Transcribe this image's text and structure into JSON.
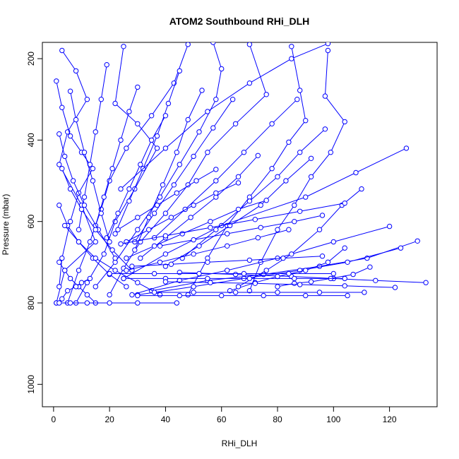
{
  "chart_data": {
    "type": "line",
    "title": "ATOM2 Southbound RHi_DLH",
    "xlabel": "RHi_DLH",
    "ylabel": "Pressure (mbar)",
    "xlim": [
      -4,
      137
    ],
    "ylim": [
      1055,
      160
    ],
    "y_reversed": true,
    "xticks": [
      0,
      20,
      40,
      60,
      80,
      100,
      120
    ],
    "yticks": [
      200,
      400,
      600,
      800,
      1000
    ],
    "grid": false,
    "legend": "none",
    "marker": "open-circle",
    "color": "#0000ff",
    "series": [
      {
        "x": [
          3,
          8,
          12,
          5,
          2,
          10,
          15,
          4,
          1
        ],
        "y": [
          180,
          230,
          300,
          380,
          460,
          560,
          650,
          720,
          800
        ]
      },
      {
        "x": [
          1,
          3,
          6,
          10,
          14,
          9,
          6,
          3,
          2
        ],
        "y": [
          255,
          320,
          390,
          430,
          470,
          530,
          600,
          690,
          760
        ]
      },
      {
        "x": [
          25,
          22,
          30,
          37,
          29,
          22,
          18,
          12,
          8
        ],
        "y": [
          170,
          310,
          360,
          420,
          520,
          600,
          680,
          750,
          800
        ]
      },
      {
        "x": [
          48,
          43,
          35,
          26,
          20,
          17,
          13,
          9,
          5
        ],
        "y": [
          165,
          260,
          340,
          420,
          500,
          570,
          650,
          720,
          800
        ]
      },
      {
        "x": [
          57,
          60,
          58,
          52,
          45,
          38,
          30,
          22,
          15
        ],
        "y": [
          160,
          225,
          300,
          380,
          460,
          540,
          620,
          700,
          760
        ]
      },
      {
        "x": [
          70,
          76,
          65,
          55,
          48,
          40,
          31,
          25,
          20
        ],
        "y": [
          165,
          288,
          360,
          430,
          510,
          580,
          650,
          715,
          780
        ]
      },
      {
        "x": [
          85,
          88,
          90,
          84,
          78,
          70,
          62,
          55,
          48
        ],
        "y": [
          170,
          278,
          352,
          405,
          470,
          540,
          610,
          690,
          780
        ]
      },
      {
        "x": [
          98,
          97,
          104,
          99,
          92,
          86,
          80,
          74,
          70
        ],
        "y": [
          180,
          292,
          355,
          430,
          490,
          560,
          620,
          700,
          770
        ]
      },
      {
        "x": [
          126,
          108,
          90,
          60,
          40,
          25
        ],
        "y": [
          420,
          480,
          540,
          610,
          680,
          740
        ]
      },
      {
        "x": [
          130,
          112,
          95,
          75,
          55,
          35
        ],
        "y": [
          648,
          690,
          710,
          730,
          745,
          770
        ]
      },
      {
        "x": [
          133,
          115,
          100,
          85,
          65,
          45
        ],
        "y": [
          750,
          745,
          740,
          735,
          730,
          725
        ]
      },
      {
        "x": [
          124,
          105,
          88,
          68,
          50,
          30
        ],
        "y": [
          665,
          700,
          720,
          740,
          760,
          780
        ]
      },
      {
        "x": [
          120,
          100,
          80,
          62,
          45,
          28
        ],
        "y": [
          612,
          650,
          690,
          720,
          745,
          780
        ]
      },
      {
        "x": [
          104,
          98,
          90,
          80,
          72,
          63
        ],
        "y": [
          665,
          700,
          720,
          735,
          750,
          770
        ]
      },
      {
        "x": [
          110,
          103,
          95,
          85,
          76,
          66
        ],
        "y": [
          520,
          560,
          620,
          680,
          720,
          760
        ]
      },
      {
        "x": [
          113,
          107,
          99,
          92,
          86,
          80
        ],
        "y": [
          712,
          730,
          740,
          748,
          752,
          760
        ]
      },
      {
        "x": [
          97,
          88,
          80,
          70,
          58,
          46
        ],
        "y": [
          373,
          430,
          490,
          550,
          620,
          690
        ]
      },
      {
        "x": [
          92,
          83,
          74,
          63,
          52,
          40
        ],
        "y": [
          445,
          500,
          560,
          610,
          660,
          710
        ]
      },
      {
        "x": [
          87,
          78,
          68,
          58,
          47,
          36
        ],
        "y": [
          300,
          360,
          430,
          500,
          570,
          640
        ]
      },
      {
        "x": [
          73,
          66,
          58,
          49,
          40,
          31
        ],
        "y": [
          438,
          490,
          540,
          590,
          640,
          690
        ]
      },
      {
        "x": [
          64,
          57,
          50,
          43,
          36,
          29
        ],
        "y": [
          300,
          370,
          440,
          510,
          580,
          650
        ]
      },
      {
        "x": [
          45,
          41,
          37,
          32,
          27,
          22
        ],
        "y": [
          230,
          310,
          390,
          470,
          550,
          630
        ]
      },
      {
        "x": [
          53,
          48,
          44,
          39,
          34,
          29
        ],
        "y": [
          278,
          350,
          430,
          510,
          590,
          670
        ]
      },
      {
        "x": [
          40,
          35,
          31,
          27,
          23,
          19
        ],
        "y": [
          340,
          400,
          460,
          520,
          580,
          640
        ]
      },
      {
        "x": [
          30,
          27,
          24,
          21,
          18,
          15
        ],
        "y": [
          270,
          330,
          400,
          470,
          540,
          610
        ]
      },
      {
        "x": [
          19,
          17,
          15,
          13,
          11,
          9
        ],
        "y": [
          215,
          300,
          380,
          460,
          540,
          620
        ]
      },
      {
        "x": [
          6,
          8,
          11,
          14,
          17,
          20
        ],
        "y": [
          280,
          350,
          430,
          500,
          580,
          650
        ]
      },
      {
        "x": [
          2,
          4,
          7,
          11,
          16,
          22
        ],
        "y": [
          385,
          440,
          500,
          560,
          620,
          690
        ]
      },
      {
        "x": [
          3,
          6,
          10,
          15,
          21,
          28
        ],
        "y": [
          470,
          520,
          570,
          620,
          670,
          720
        ]
      },
      {
        "x": [
          2,
          5,
          9,
          14,
          20,
          26
        ],
        "y": [
          560,
          610,
          650,
          690,
          730,
          760
        ]
      },
      {
        "x": [
          4,
          9,
          15,
          22,
          30,
          38
        ],
        "y": [
          610,
          650,
          690,
          720,
          750,
          780
        ]
      },
      {
        "x": [
          2,
          4,
          6,
          9,
          12,
          15
        ],
        "y": [
          700,
          720,
          740,
          760,
          780,
          800
        ]
      },
      {
        "x": [
          1,
          3,
          5,
          8,
          10,
          13
        ],
        "y": [
          800,
          790,
          770,
          760,
          750,
          740
        ]
      },
      {
        "x": [
          105,
          90,
          75,
          60,
          45,
          30
        ],
        "y": [
          782,
          782,
          782,
          782,
          782,
          782
        ]
      },
      {
        "x": [
          111,
          95,
          80,
          65,
          50,
          36
        ],
        "y": [
          774,
          774,
          774,
          774,
          774,
          774
        ]
      },
      {
        "x": [
          104,
          86,
          70,
          55,
          40,
          25
        ],
        "y": [
          740,
          740,
          740,
          740,
          740,
          740
        ]
      },
      {
        "x": [
          122,
          104,
          88,
          72,
          56,
          40
        ],
        "y": [
          762,
          758,
          755,
          752,
          750,
          748
        ]
      },
      {
        "x": [
          100,
          84,
          68,
          52,
          36,
          20
        ],
        "y": [
          728,
          728,
          728,
          728,
          728,
          728
        ]
      },
      {
        "x": [
          44,
          30,
          20,
          12,
          6,
          2
        ],
        "y": [
          800,
          800,
          800,
          800,
          800,
          800
        ]
      },
      {
        "x": [
          96,
          82,
          70,
          55,
          42,
          28
        ],
        "y": [
          685,
          690,
          695,
          700,
          705,
          710
        ]
      },
      {
        "x": [
          84,
          73,
          62,
          50,
          38,
          26
        ],
        "y": [
          620,
          640,
          660,
          680,
          700,
          720
        ]
      },
      {
        "x": [
          76,
          66,
          56,
          46,
          36,
          26
        ],
        "y": [
          548,
          570,
          600,
          630,
          660,
          690
        ]
      },
      {
        "x": [
          66,
          58,
          50,
          42,
          34,
          26
        ],
        "y": [
          505,
          530,
          560,
          590,
          620,
          650
        ]
      },
      {
        "x": [
          58,
          51,
          44,
          37,
          30,
          23
        ],
        "y": [
          472,
          500,
          530,
          560,
          590,
          620
        ]
      },
      {
        "x": [
          98,
          85,
          70,
          55,
          40,
          24
        ],
        "y": [
          163,
          200,
          260,
          330,
          420,
          520
        ]
      },
      {
        "x": [
          104,
          88,
          72,
          56,
          40,
          24
        ],
        "y": [
          555,
          575,
          595,
          615,
          635,
          655
        ]
      },
      {
        "x": [
          96,
          86,
          74,
          62,
          50,
          38
        ],
        "y": [
          585,
          600,
          615,
          630,
          645,
          660
        ]
      }
    ]
  }
}
